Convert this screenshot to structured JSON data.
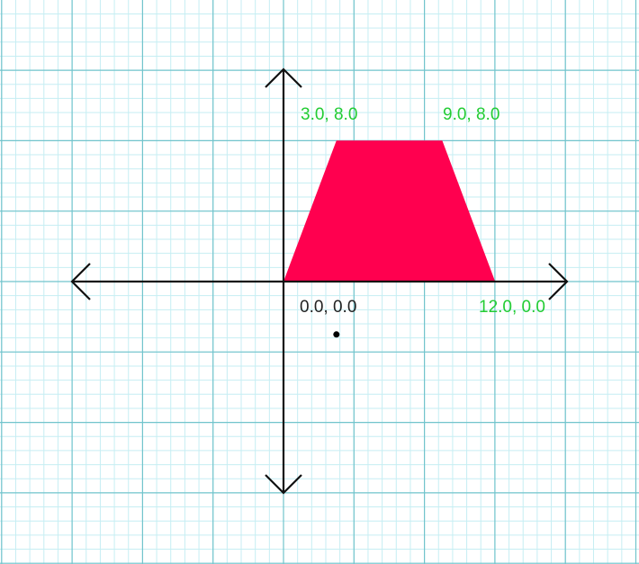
{
  "colors": {
    "grid_minor": "#c6eef3",
    "grid_major": "#72c4cc",
    "axis": "#111111",
    "shape_fill": "#ff004f",
    "vertex_label": "#22cc33",
    "origin_label": "#222222",
    "dot": "#000000"
  },
  "shape": {
    "name": "trapezoid",
    "vertices": [
      {
        "x": 0,
        "y": 0
      },
      {
        "x": 3,
        "y": 8
      },
      {
        "x": 9,
        "y": 8
      },
      {
        "x": 12,
        "y": 0
      }
    ]
  },
  "labels": {
    "origin": "0.0, 0.0",
    "v_top_left": "3.0, 8.0",
    "v_top_right": "9.0, 8.0",
    "v_bottom_right": "12.0, 0.0"
  },
  "marker": {
    "x": 3,
    "y": -3
  }
}
